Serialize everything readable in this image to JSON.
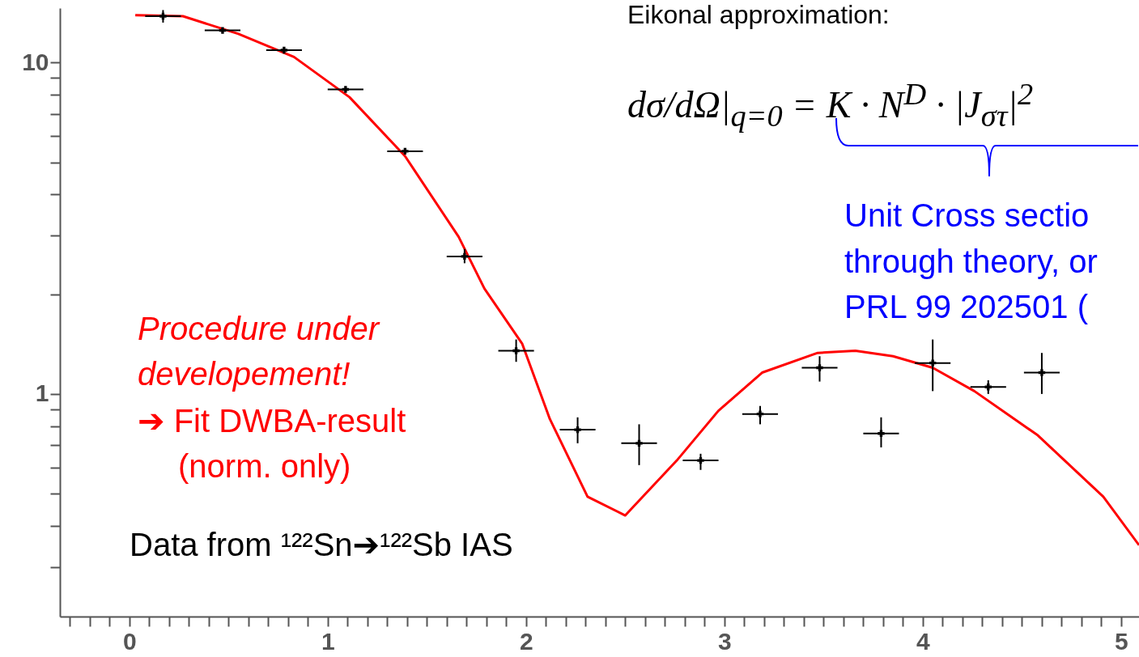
{
  "chart_data": {
    "type": "scatter",
    "log": "y",
    "grid": false,
    "xlim": [
      -0.35,
      5.09
    ],
    "ylim": [
      0.213,
      14.6
    ],
    "xticks": [
      {
        "value": -0.3,
        "label": null
      },
      {
        "value": -0.2,
        "label": null
      },
      {
        "value": -0.1,
        "label": null
      },
      0,
      {
        "value": 0.1,
        "label": null
      },
      {
        "value": 0.2,
        "label": null
      },
      {
        "value": 0.3,
        "label": null
      },
      {
        "value": 0.4,
        "label": null
      },
      {
        "value": 0.5,
        "label": null
      },
      {
        "value": 0.6,
        "label": null
      },
      {
        "value": 0.7,
        "label": null
      },
      {
        "value": 0.8,
        "label": null
      },
      {
        "value": 0.9,
        "label": null
      },
      1,
      {
        "value": 1.1,
        "label": null
      },
      {
        "value": 1.2,
        "label": null
      },
      {
        "value": 1.3,
        "label": null
      },
      {
        "value": 1.4,
        "label": null
      },
      {
        "value": 1.5,
        "label": null
      },
      {
        "value": 1.6,
        "label": null
      },
      {
        "value": 1.7,
        "label": null
      },
      {
        "value": 1.8,
        "label": null
      },
      {
        "value": 1.9,
        "label": null
      },
      2,
      {
        "value": 2.1,
        "label": null
      },
      {
        "value": 2.2,
        "label": null
      },
      {
        "value": 2.3,
        "label": null
      },
      {
        "value": 2.4,
        "label": null
      },
      {
        "value": 2.5,
        "label": null
      },
      {
        "value": 2.6,
        "label": null
      },
      {
        "value": 2.7,
        "label": null
      },
      {
        "value": 2.8,
        "label": null
      },
      {
        "value": 2.9,
        "label": null
      },
      3,
      {
        "value": 3.1,
        "label": null
      },
      {
        "value": 3.2,
        "label": null
      },
      {
        "value": 3.3,
        "label": null
      },
      {
        "value": 3.4,
        "label": null
      },
      {
        "value": 3.5,
        "label": null
      },
      {
        "value": 3.6,
        "label": null
      },
      {
        "value": 3.7,
        "label": null
      },
      {
        "value": 3.8,
        "label": null
      },
      {
        "value": 3.9,
        "label": null
      },
      4,
      {
        "value": 4.1,
        "label": null
      },
      {
        "value": 4.2,
        "label": null
      },
      {
        "value": 4.3,
        "label": null
      },
      {
        "value": 4.4,
        "label": null
      },
      {
        "value": 4.5,
        "label": null
      },
      {
        "value": 4.6,
        "label": null
      },
      {
        "value": 4.7,
        "label": null
      },
      {
        "value": 4.8,
        "label": null
      },
      {
        "value": 4.9,
        "label": null
      },
      5
    ],
    "yticks": [
      {
        "value": 0.3,
        "label": null
      },
      {
        "value": 0.4,
        "label": null
      },
      {
        "value": 0.5,
        "label": null
      },
      {
        "value": 0.6,
        "label": null
      },
      {
        "value": 0.7,
        "label": null
      },
      {
        "value": 0.8,
        "label": null
      },
      {
        "value": 0.9,
        "label": null
      },
      1,
      {
        "value": 2,
        "label": null
      },
      {
        "value": 3,
        "label": null
      },
      {
        "value": 4,
        "label": null
      },
      {
        "value": 5,
        "label": null
      },
      {
        "value": 6,
        "label": null
      },
      {
        "value": 7,
        "label": null
      },
      {
        "value": 8,
        "label": null
      },
      {
        "value": 9,
        "label": null
      },
      10
    ],
    "series": [
      {
        "type": "scatter",
        "marker": "cross",
        "color": "#000000",
        "x": [
          0.17,
          0.47,
          0.78,
          1.09,
          1.39,
          1.69,
          1.95,
          2.26,
          2.57,
          2.88,
          3.18,
          3.48,
          3.79,
          4.05,
          4.33,
          4.6
        ],
        "values": [
          13.8,
          12.5,
          10.9,
          8.3,
          5.4,
          2.6,
          1.35,
          0.78,
          0.71,
          0.63,
          0.87,
          1.2,
          0.76,
          1.24,
          1.05,
          1.16
        ],
        "errors": [
          [
            13.2,
            14.4
          ],
          null,
          null,
          null,
          null,
          [
            2.48,
            2.74
          ],
          [
            1.25,
            1.46
          ],
          [
            0.71,
            0.85
          ],
          [
            0.61,
            0.81
          ],
          [
            0.59,
            0.66
          ],
          [
            0.81,
            0.92
          ],
          [
            1.09,
            1.3
          ],
          [
            0.69,
            0.85
          ],
          [
            1.02,
            1.46
          ],
          [
            1.0,
            1.1
          ],
          [
            1.0,
            1.33
          ]
        ],
        "xerrors": [
          0.09,
          0.09,
          0.09,
          0.09,
          0.09,
          0.09,
          0.09,
          0.09,
          0.09,
          0.09,
          0.09,
          0.09,
          0.09,
          0.09,
          0.09,
          0.09
        ]
      },
      {
        "type": "line",
        "color": "#ff0000",
        "x": [
          0.03,
          0.27,
          0.55,
          0.83,
          1.11,
          1.39,
          1.66,
          1.79,
          1.98,
          2.12,
          2.31,
          2.5,
          2.76,
          2.97,
          3.19,
          3.47,
          3.66,
          3.85,
          4.05,
          4.26,
          4.58,
          4.91,
          5.09
        ],
        "values": [
          13.9,
          13.8,
          12.2,
          10.4,
          7.86,
          5.22,
          2.98,
          2.08,
          1.42,
          0.84,
          0.49,
          0.43,
          0.63,
          0.89,
          1.16,
          1.33,
          1.35,
          1.3,
          1.2,
          1.02,
          0.75,
          0.49,
          0.35
        ]
      }
    ],
    "annotations": [
      "Eikonal approximation:",
      "dσ/dΩ|$_{q=0}$ = K · N$^{D}$ · |J$_{στ}$|$^{2}$",
      "Unit Cross sectio",
      "through theory, or",
      "PRL 99 202501 (",
      "Procedure under developement!",
      "➔ Fit DWBA-result (norm. only)",
      "Data from ¹²²Sn➔¹²²Sb IAS"
    ]
  }
}
